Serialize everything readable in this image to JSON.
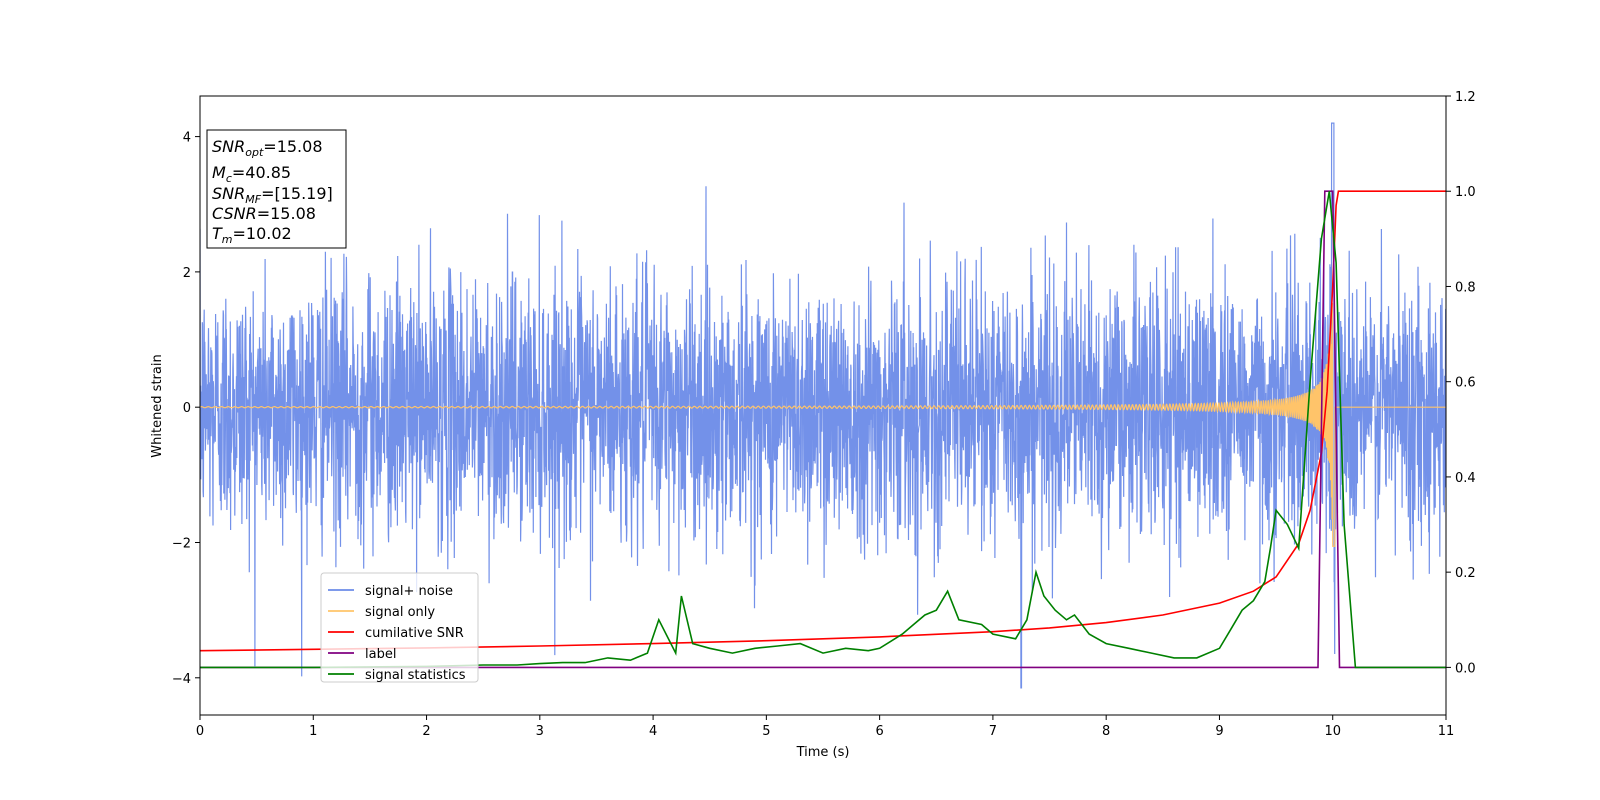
{
  "chart_data": {
    "type": "line",
    "title": "",
    "xlabel": "Time (s)",
    "ylabel_left": "Whitened strain",
    "ylabel_right": "",
    "xlim": [
      0,
      11
    ],
    "ylim_left": [
      -4.55,
      4.6
    ],
    "ylim_right": [
      -0.1,
      1.2
    ],
    "xticks": [
      "0",
      "1",
      "2",
      "3",
      "4",
      "5",
      "6",
      "7",
      "8",
      "9",
      "10",
      "11"
    ],
    "yticks_left": [
      "−4",
      "−2",
      "0",
      "2",
      "4"
    ],
    "yticks_right": [
      "0.0",
      "0.2",
      "0.4",
      "0.6",
      "0.8",
      "1.0",
      "1.2"
    ],
    "grid": false,
    "legend_position": "lower-left",
    "info_box": {
      "snr_opt_label": "SNR",
      "snr_opt_sub": "opt",
      "snr_opt_value": "=15.08",
      "mc_label": "M",
      "mc_sub": "c",
      "mc_value": "=40.85",
      "snr_mf_label": "SNR",
      "snr_mf_sub": "MF",
      "snr_mf_value": "=[15.19]",
      "csnr_label": "CSNR",
      "csnr_value": "=15.08",
      "tm_label": "T",
      "tm_sub": "m",
      "tm_value": "=10.02"
    },
    "series": [
      {
        "name": "signal+ noise",
        "axis": "left",
        "color": "#6b8be8",
        "description_stats": {
          "mean": 0,
          "std": 0.95,
          "max": 4.2,
          "min": -4.15
        }
      },
      {
        "name": "signal only",
        "axis": "left",
        "color": "#ffc46a",
        "chirp": {
          "t_merge": 10.02,
          "amp_max": 1.6
        }
      },
      {
        "name": "cumilative SNR",
        "axis": "right",
        "color": "#ff0000",
        "x": [
          0,
          1,
          2,
          3,
          4,
          5,
          6,
          7,
          7.5,
          8,
          8.5,
          9,
          9.3,
          9.5,
          9.7,
          9.8,
          9.9,
          9.95,
          10.0,
          10.03,
          10.05,
          11
        ],
        "y": [
          0.035,
          0.038,
          0.041,
          0.045,
          0.05,
          0.056,
          0.064,
          0.075,
          0.083,
          0.094,
          0.11,
          0.135,
          0.16,
          0.19,
          0.26,
          0.33,
          0.45,
          0.58,
          0.8,
          0.97,
          1.0,
          1.0
        ]
      },
      {
        "name": "label",
        "axis": "right",
        "color": "#800080",
        "x": [
          0,
          9.87,
          9.93,
          10.0,
          10.06,
          11
        ],
        "y": [
          0.0,
          0.0,
          1.0,
          1.0,
          0.0,
          0.0
        ]
      },
      {
        "name": "signal statistics",
        "axis": "right",
        "color": "#008000",
        "x": [
          0,
          0.5,
          1,
          1.5,
          2,
          2.5,
          2.8,
          3.0,
          3.2,
          3.4,
          3.6,
          3.8,
          3.95,
          4.05,
          4.2,
          4.25,
          4.35,
          4.5,
          4.7,
          4.9,
          5.1,
          5.3,
          5.5,
          5.7,
          5.9,
          6.0,
          6.2,
          6.3,
          6.4,
          6.5,
          6.6,
          6.7,
          6.9,
          7.0,
          7.2,
          7.3,
          7.38,
          7.45,
          7.55,
          7.65,
          7.72,
          7.85,
          8.0,
          8.2,
          8.4,
          8.6,
          8.8,
          9.0,
          9.1,
          9.2,
          9.3,
          9.4,
          9.45,
          9.5,
          9.6,
          9.7,
          9.8,
          9.9,
          9.97,
          10.03,
          10.1,
          10.2,
          11
        ],
        "y": [
          0.0,
          0.0,
          0.0,
          0.001,
          0.002,
          0.005,
          0.005,
          0.008,
          0.01,
          0.01,
          0.02,
          0.015,
          0.03,
          0.1,
          0.03,
          0.15,
          0.05,
          0.04,
          0.03,
          0.04,
          0.045,
          0.05,
          0.03,
          0.04,
          0.035,
          0.04,
          0.07,
          0.09,
          0.11,
          0.12,
          0.16,
          0.1,
          0.09,
          0.07,
          0.06,
          0.1,
          0.2,
          0.15,
          0.12,
          0.1,
          0.11,
          0.07,
          0.05,
          0.04,
          0.03,
          0.02,
          0.02,
          0.04,
          0.08,
          0.12,
          0.14,
          0.18,
          0.25,
          0.33,
          0.3,
          0.25,
          0.6,
          0.9,
          1.0,
          0.85,
          0.3,
          0.0,
          0.0
        ]
      }
    ]
  }
}
